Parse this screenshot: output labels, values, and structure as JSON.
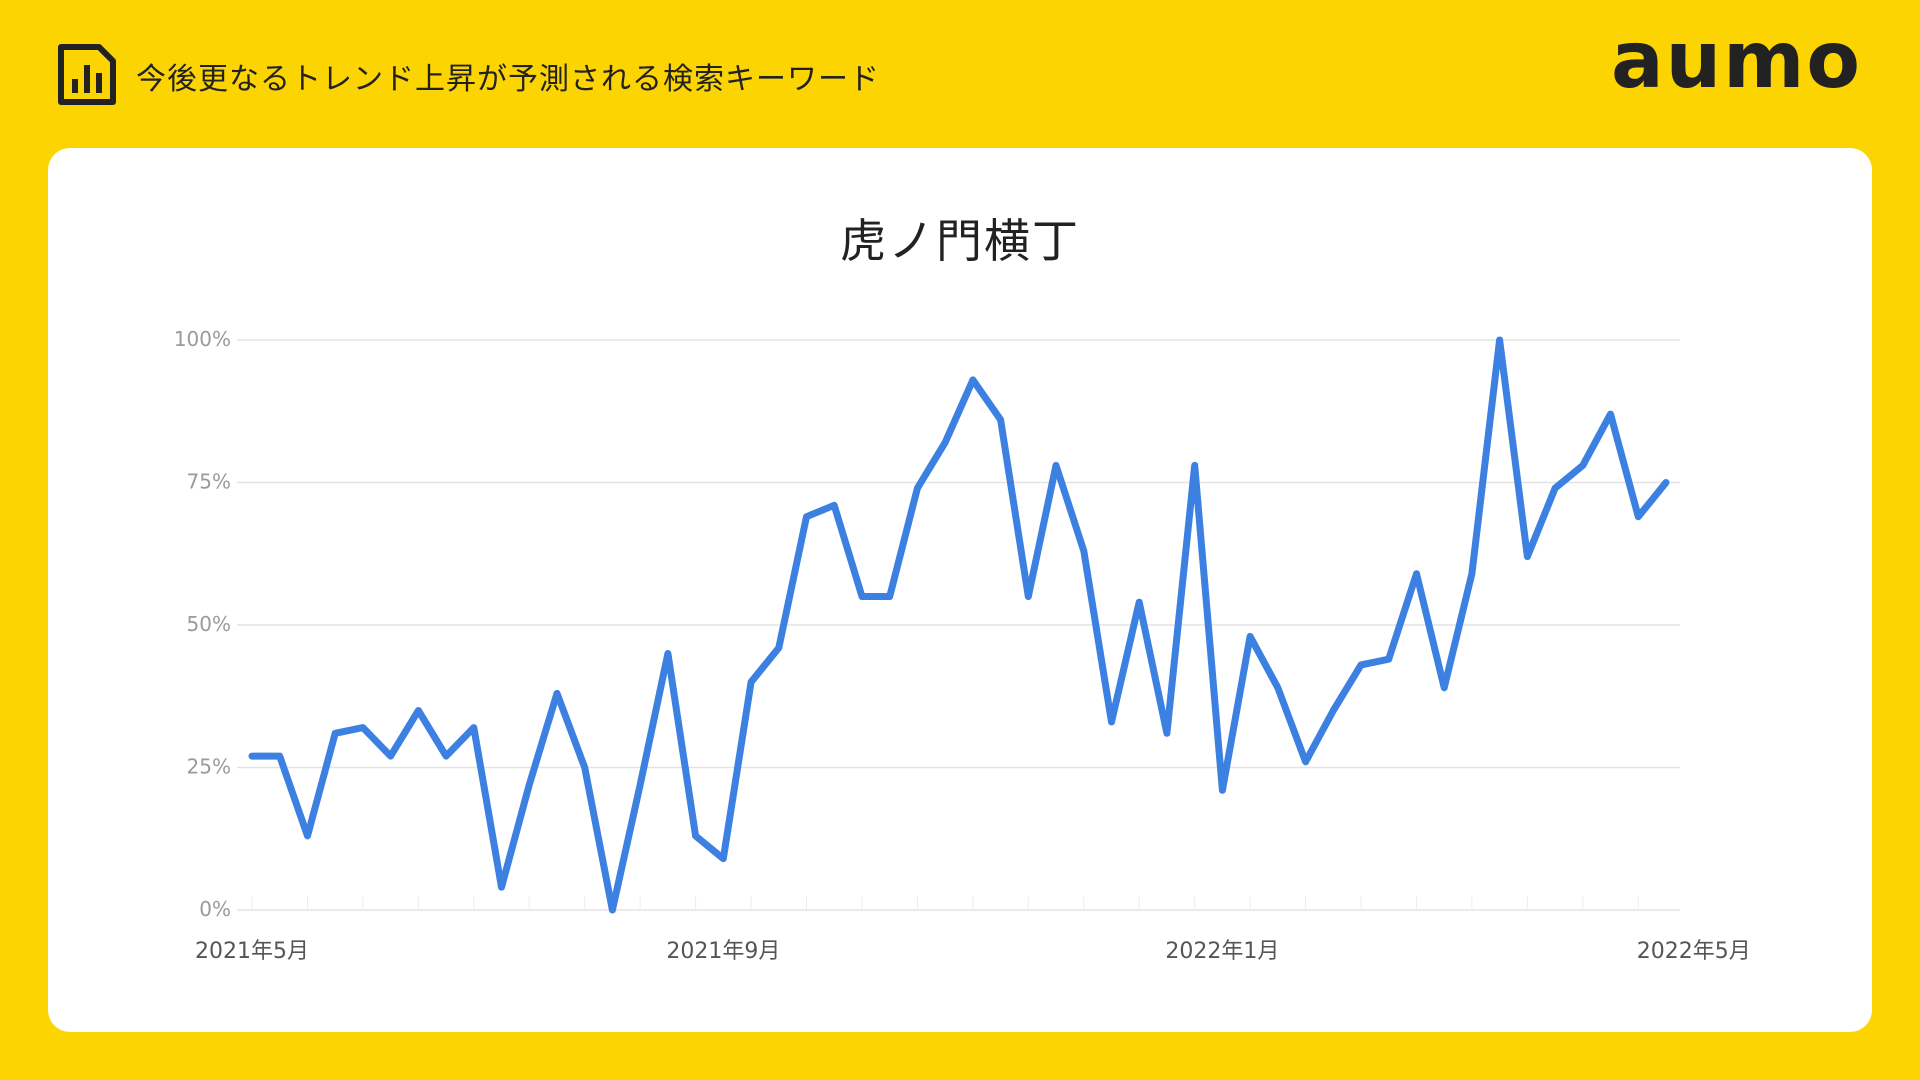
{
  "header": {
    "title": "今後更なるトレンド上昇が予測される検索キーワード",
    "icon": "bar-chart-document-icon"
  },
  "brand": {
    "logo_text": "aumo"
  },
  "colors": {
    "background": "#FCD401",
    "card": "#FFFFFF",
    "line": "#3C80E2",
    "text": "#222222"
  },
  "chart_data": {
    "type": "line",
    "title": "虎ノ門横丁",
    "xlabel": "",
    "ylabel": "",
    "ylim": [
      0,
      100
    ],
    "grid": true,
    "y_ticks": [
      "0%",
      "25%",
      "50%",
      "75%",
      "100%"
    ],
    "x_tick_labels": [
      {
        "label": "2021年5月",
        "index": 0
      },
      {
        "label": "2021年9月",
        "index": 17
      },
      {
        "label": "2022年1月",
        "index": 35
      },
      {
        "label": "2022年5月",
        "index": 52
      }
    ],
    "series": [
      {
        "name": "",
        "color": "#3C80E2",
        "values": [
          27,
          27,
          13,
          31,
          32,
          27,
          35,
          27,
          32,
          4,
          22,
          38,
          25,
          0,
          22,
          45,
          13,
          9,
          40,
          46,
          69,
          71,
          55,
          55,
          74,
          82,
          93,
          86,
          55,
          78,
          63,
          33,
          54,
          31,
          78,
          21,
          48,
          39,
          26,
          35,
          43,
          44,
          59,
          39,
          59,
          100,
          62,
          74,
          78,
          87,
          69,
          75
        ]
      }
    ]
  }
}
